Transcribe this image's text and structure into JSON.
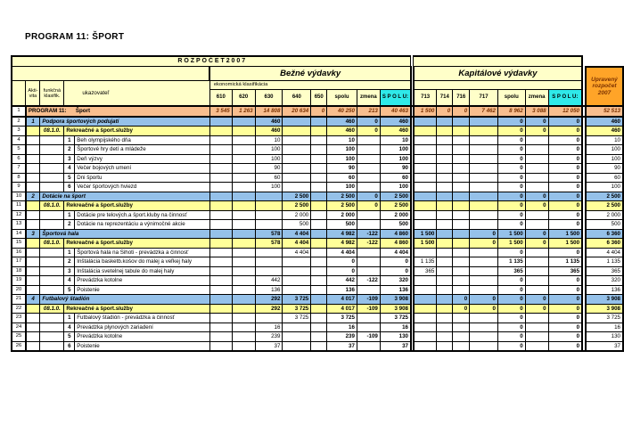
{
  "page": {
    "title": "PROGRAM 11:  ŠPORT"
  },
  "table": {
    "banner": "R O Z P O Č E T   2 0 0 7",
    "sections": {
      "bezne": "Bežné výdavky",
      "kapitalove": "Kapitálové výdavky",
      "upraveny": "Upravený rozpočet 2007"
    },
    "left_headers": {
      "aktivita": "Akti-\nvita",
      "funkcna": "funkčná\nklasifik.",
      "ukazovatel": "ukazovateľ"
    },
    "ekonomicka": "ekonomická klasifikácia",
    "bezne_cols": [
      "610",
      "620",
      "630",
      "640",
      "650",
      "spolu",
      "zmena",
      "S P O L U:"
    ],
    "kap_cols": [
      "713",
      "714",
      "716",
      "717",
      "spolu",
      "zmena",
      "S P O L U:"
    ],
    "rows": [
      {
        "num": "1",
        "type": "program",
        "akti": "",
        "funk": "",
        "item": "",
        "label": "PROGRAM 11:      Šport",
        "b": [
          "3 545",
          "1 263",
          "14 808",
          "20 634",
          "0",
          "40 250",
          "213",
          "40 463"
        ],
        "k": [
          "1 500",
          "0",
          "0",
          "7 462",
          "8 962",
          "3 088",
          "12 050"
        ],
        "u": "52 513"
      },
      {
        "num": "2",
        "type": "activity",
        "akti": "1",
        "funk": "",
        "item": "",
        "label": "Podpora športových podujatí",
        "b": [
          "",
          "",
          "460",
          "",
          "",
          "460",
          "0",
          "460"
        ],
        "k": [
          "",
          "",
          "",
          "",
          "0",
          "0",
          "0"
        ],
        "u": "460"
      },
      {
        "num": "3",
        "type": "funkclass",
        "akti": "",
        "funk": "08.1.0.",
        "item": "",
        "label": "Rekreačné a šport.služby",
        "b": [
          "",
          "",
          "460",
          "",
          "",
          "460",
          "0",
          "460"
        ],
        "k": [
          "",
          "",
          "",
          "",
          "0",
          "0",
          "0"
        ],
        "u": "460"
      },
      {
        "num": "4",
        "type": "item",
        "akti": "",
        "funk": "",
        "item": "1",
        "label": "Beh olympijského dňa",
        "b": [
          "",
          "",
          "10",
          "",
          "",
          "10",
          "",
          "10"
        ],
        "k": [
          "",
          "",
          "",
          "",
          "0",
          "",
          "0"
        ],
        "u": "10"
      },
      {
        "num": "5",
        "type": "item",
        "akti": "",
        "funk": "",
        "item": "2",
        "label": "Športové hry detí a mládeže",
        "b": [
          "",
          "",
          "100",
          "",
          "",
          "100",
          "",
          "100"
        ],
        "k": [
          "",
          "",
          "",
          "",
          "0",
          "",
          "0"
        ],
        "u": "100"
      },
      {
        "num": "6",
        "type": "item",
        "akti": "",
        "funk": "",
        "item": "3",
        "label": "Deň výzvy",
        "b": [
          "",
          "",
          "100",
          "",
          "",
          "100",
          "",
          "100"
        ],
        "k": [
          "",
          "",
          "",
          "",
          "0",
          "",
          "0"
        ],
        "u": "100"
      },
      {
        "num": "7",
        "type": "item",
        "akti": "",
        "funk": "",
        "item": "4",
        "label": "Večer bojových umení",
        "b": [
          "",
          "",
          "90",
          "",
          "",
          "90",
          "",
          "90"
        ],
        "k": [
          "",
          "",
          "",
          "",
          "0",
          "",
          "0"
        ],
        "u": "90"
      },
      {
        "num": "8",
        "type": "item",
        "akti": "",
        "funk": "",
        "item": "5",
        "label": "Dni športu",
        "b": [
          "",
          "",
          "60",
          "",
          "",
          "60",
          "",
          "60"
        ],
        "k": [
          "",
          "",
          "",
          "",
          "0",
          "",
          "0"
        ],
        "u": "60"
      },
      {
        "num": "9",
        "type": "item",
        "akti": "",
        "funk": "",
        "item": "6",
        "label": "Večer športových hviezd",
        "b": [
          "",
          "",
          "100",
          "",
          "",
          "100",
          "",
          "100"
        ],
        "k": [
          "",
          "",
          "",
          "",
          "0",
          "",
          "0"
        ],
        "u": "100"
      },
      {
        "num": "10",
        "type": "activity",
        "akti": "2",
        "funk": "",
        "item": "",
        "label": "Dotácie na šport",
        "b": [
          "",
          "",
          "",
          "2 500",
          "",
          "2 500",
          "0",
          "2 500"
        ],
        "k": [
          "",
          "",
          "",
          "",
          "0",
          "0",
          "0"
        ],
        "u": "2 500"
      },
      {
        "num": "11",
        "type": "funkclass",
        "akti": "",
        "funk": "08.1.0.",
        "item": "",
        "label": "Rekreačné a šport.služby",
        "b": [
          "",
          "",
          "",
          "2 500",
          "",
          "2 500",
          "0",
          "2 500"
        ],
        "k": [
          "",
          "",
          "",
          "",
          "0",
          "0",
          "0"
        ],
        "u": "2 500"
      },
      {
        "num": "12",
        "type": "item",
        "akti": "",
        "funk": "",
        "item": "1",
        "label": "Dotácie pre telových.a šport.kluby na činnosť",
        "b": [
          "",
          "",
          "",
          "2 000",
          "",
          "2 000",
          "",
          "2 000"
        ],
        "k": [
          "",
          "",
          "",
          "",
          "0",
          "",
          "0"
        ],
        "u": "2 000"
      },
      {
        "num": "13",
        "type": "item",
        "akti": "",
        "funk": "",
        "item": "2",
        "label": "Dotácie na reprezentáciu a výnimočné akcie",
        "b": [
          "",
          "",
          "",
          "500",
          "",
          "500",
          "",
          "500"
        ],
        "k": [
          "",
          "",
          "",
          "",
          "0",
          "",
          "0"
        ],
        "u": "500"
      },
      {
        "num": "14",
        "type": "activity",
        "akti": "3",
        "funk": "",
        "item": "",
        "label": "Športová hala",
        "b": [
          "",
          "",
          "578",
          "4 404",
          "",
          "4 982",
          "-122",
          "4 860"
        ],
        "k": [
          "1 500",
          "",
          "",
          "0",
          "1 500",
          "0",
          "1 500"
        ],
        "u": "6 360"
      },
      {
        "num": "15",
        "type": "funkclass",
        "akti": "",
        "funk": "08.1.0.",
        "item": "",
        "label": "Rekreačné a šport.služby",
        "b": [
          "",
          "",
          "578",
          "4 404",
          "",
          "4 982",
          "-122",
          "4 860"
        ],
        "k": [
          "1 500",
          "",
          "",
          "0",
          "1 500",
          "0",
          "1 500"
        ],
        "u": "6 360"
      },
      {
        "num": "16",
        "type": "item",
        "akti": "",
        "funk": "",
        "item": "1",
        "label": "Športová hala na Sihoti - prevádzka a činnosť",
        "b": [
          "",
          "",
          "",
          "4 404",
          "",
          "4 404",
          "",
          "4 404"
        ],
        "k": [
          "",
          "",
          "",
          "",
          "0",
          "",
          "0"
        ],
        "u": "4 404"
      },
      {
        "num": "17",
        "type": "item",
        "akti": "",
        "funk": "",
        "item": "2",
        "label": "Inštalácia basketb.košov do malej a veľkej haly",
        "b": [
          "",
          "",
          "",
          "",
          "",
          "0",
          "",
          "0"
        ],
        "k": [
          "1 135",
          "",
          "",
          "",
          "1 135",
          "",
          "1 135"
        ],
        "u": "1 135"
      },
      {
        "num": "18",
        "type": "item",
        "akti": "",
        "funk": "",
        "item": "3",
        "label": "Inštalácia svetelnej tabule do malej haly",
        "b": [
          "",
          "",
          "",
          "",
          "",
          "0",
          "",
          "0"
        ],
        "k": [
          "365",
          "",
          "",
          "",
          "365",
          "",
          "365"
        ],
        "u": "365"
      },
      {
        "num": "19",
        "type": "item",
        "akti": "",
        "funk": "",
        "item": "4",
        "label": "Prevádzka kotolne",
        "b": [
          "",
          "",
          "442",
          "",
          "",
          "442",
          "-122",
          "320"
        ],
        "k": [
          "",
          "",
          "",
          "",
          "0",
          "",
          "0"
        ],
        "u": "320"
      },
      {
        "num": "20",
        "type": "item",
        "akti": "",
        "funk": "",
        "item": "5",
        "label": "Poistenie",
        "b": [
          "",
          "",
          "136",
          "",
          "",
          "136",
          "",
          "136"
        ],
        "k": [
          "",
          "",
          "",
          "",
          "0",
          "",
          "0"
        ],
        "u": "136"
      },
      {
        "num": "21",
        "type": "activity",
        "akti": "4",
        "funk": "",
        "item": "",
        "label": "Futbalový štadión",
        "b": [
          "",
          "",
          "292",
          "3 725",
          "",
          "4 017",
          "-109",
          "3 908"
        ],
        "k": [
          "",
          "",
          "0",
          "0",
          "0",
          "0",
          "0"
        ],
        "u": "3 908"
      },
      {
        "num": "22",
        "type": "funkclass",
        "akti": "",
        "funk": "08.1.0.",
        "item": "",
        "label": "Rekreačné a šport.služby",
        "b": [
          "",
          "",
          "292",
          "3 725",
          "",
          "4 017",
          "-109",
          "3 908"
        ],
        "k": [
          "",
          "",
          "0",
          "0",
          "0",
          "0",
          "0"
        ],
        "u": "3 908"
      },
      {
        "num": "23",
        "type": "item",
        "akti": "",
        "funk": "",
        "item": "1",
        "label": "Futbalový štadión - prevádzka a činnosť",
        "b": [
          "",
          "",
          "",
          "3 725",
          "",
          "3 725",
          "",
          "3 725"
        ],
        "k": [
          "",
          "",
          "",
          "",
          "0",
          "",
          "0"
        ],
        "u": "3 725"
      },
      {
        "num": "24",
        "type": "item",
        "akti": "",
        "funk": "",
        "item": "4",
        "label": "Prevádzka plynových zariadení",
        "b": [
          "",
          "",
          "16",
          "",
          "",
          "16",
          "",
          "16"
        ],
        "k": [
          "",
          "",
          "",
          "",
          "0",
          "",
          "0"
        ],
        "u": "16"
      },
      {
        "num": "25",
        "type": "item",
        "akti": "",
        "funk": "",
        "item": "5",
        "label": "Prevádzka kotolne",
        "b": [
          "",
          "",
          "239",
          "",
          "",
          "239",
          "-109",
          "130"
        ],
        "k": [
          "",
          "",
          "",
          "",
          "0",
          "",
          "0"
        ],
        "u": "130"
      },
      {
        "num": "26",
        "type": "item",
        "akti": "",
        "funk": "",
        "item": "6",
        "label": "Poistenie",
        "b": [
          "",
          "",
          "37",
          "",
          "",
          "37",
          "",
          "37"
        ],
        "k": [
          "",
          "",
          "",
          "",
          "0",
          "",
          "0"
        ],
        "u": "37"
      }
    ]
  }
}
